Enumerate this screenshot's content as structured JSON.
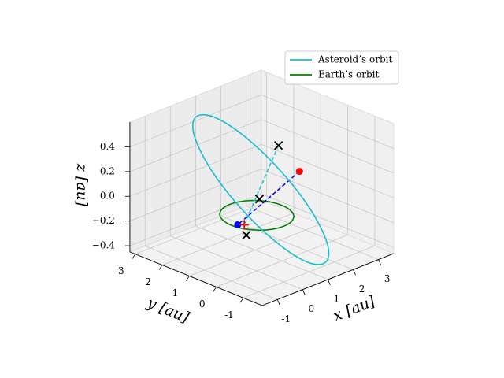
{
  "chart_data": {
    "type": "line3d",
    "xlabel": "x [au]",
    "ylabel": "y [au]",
    "zlabel": "z [au]",
    "xlim": [
      -1.6,
      3.6
    ],
    "ylim": [
      -1.7,
      3.2
    ],
    "zlim": [
      -0.45,
      0.6
    ],
    "xticks": [
      -1,
      0,
      1,
      2,
      3
    ],
    "yticks": [
      -1,
      0,
      1,
      2,
      3
    ],
    "zticks": [
      {
        "value": -0.4,
        "label": "−0.4"
      },
      {
        "value": -0.2,
        "label": "−0.2"
      },
      {
        "value": 0.0,
        "label": "0.0"
      },
      0.2,
      0.4
    ],
    "grid": true,
    "legend": "upper right",
    "series": [
      {
        "name": "Asteroid’s orbit",
        "color": "#17becf",
        "closed": true,
        "x": [
          2.3,
          2.75,
          2.68,
          2.1,
          1.18,
          0.15,
          -0.7,
          -1.15,
          -1.08,
          -0.5,
          0.42,
          1.45
        ],
        "y": [
          -0.4,
          -0.04,
          0.5,
          1.06,
          1.5,
          1.7,
          1.6,
          1.24,
          0.7,
          0.14,
          -0.3,
          -0.5
        ],
        "z": [
          -0.53,
          -0.45,
          -0.22,
          0.09,
          0.4,
          0.63,
          0.71,
          0.63,
          0.4,
          0.09,
          -0.22,
          -0.45
        ]
      },
      {
        "name": "Earth’s orbit",
        "color": "#008000",
        "closed": true,
        "x": [
          1,
          0.866,
          0.5,
          0,
          -0.5,
          -0.866,
          -1,
          -0.866,
          -0.5,
          0,
          0.5,
          0.866
        ],
        "y": [
          0,
          0.5,
          0.866,
          1,
          0.866,
          0.5,
          0,
          -0.5,
          -0.866,
          -1,
          -0.866,
          -0.5
        ],
        "z": [
          0,
          0,
          0,
          0,
          0,
          0,
          0,
          0,
          0,
          0,
          0,
          0
        ]
      }
    ],
    "lines": [
      {
        "color": "#17becf",
        "style": "dashed",
        "x": [
          1.5,
          -0.72
        ],
        "y": [
          0.6,
          -0.21
        ],
        "z": [
          0.39,
          0
        ]
      },
      {
        "color": "#0000ff",
        "style": "dashed",
        "x": [
          2.6,
          -0.85
        ],
        "y": [
          0.85,
          -0.09
        ],
        "z": [
          0.07,
          0
        ]
      }
    ],
    "points": [
      {
        "x": -0.85,
        "y": -0.09,
        "z": 0,
        "color": "#0000ff",
        "marker": "o"
      },
      {
        "x": 2.6,
        "y": 0.85,
        "z": 0.07,
        "color": "#ff0000",
        "marker": "o"
      },
      {
        "x": -0.72,
        "y": -0.21,
        "z": 0,
        "color": "#ff0000",
        "marker": "+"
      },
      {
        "x": 1.5,
        "y": 0.6,
        "z": 0.39,
        "color": "#000000",
        "marker": "x"
      },
      {
        "x": 0,
        "y": -0.1,
        "z": 0.14,
        "color": "#000000",
        "marker": "x"
      },
      {
        "x": -0.7,
        "y": -0.27,
        "z": -0.08,
        "color": "#000000",
        "marker": "x"
      }
    ]
  }
}
